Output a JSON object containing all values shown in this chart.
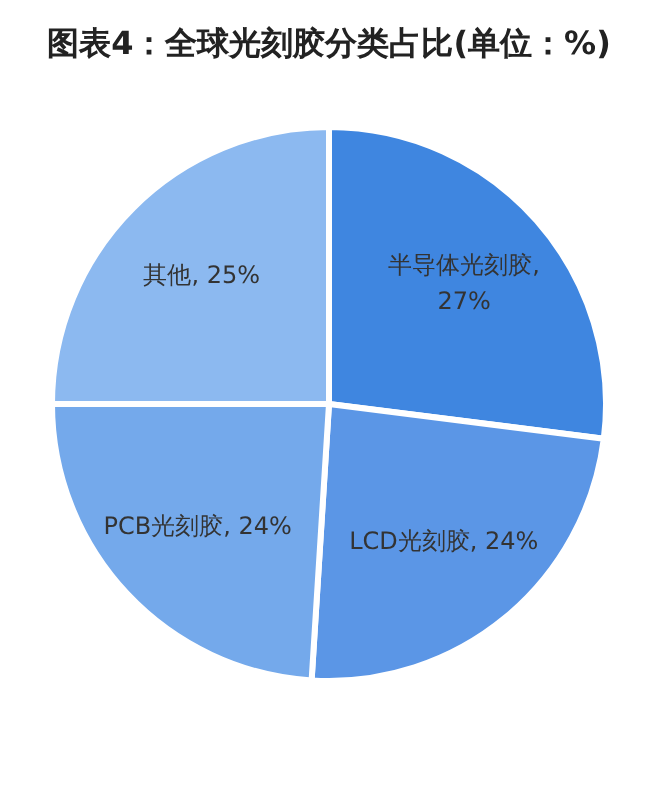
{
  "chart_data": {
    "type": "pie",
    "title": "图表4：全球光刻胶分类占比(单位：%)",
    "categories": [
      "半导体光刻胶",
      "LCD光刻胶",
      "PCB光刻胶",
      "其他"
    ],
    "values": [
      27,
      24,
      24,
      25
    ],
    "colors": [
      "#3f86e0",
      "#5b96e6",
      "#74a9eb",
      "#8cb9f0"
    ],
    "value_labels": [
      ", 27%",
      ", 24%",
      ", 24%",
      ", 25%"
    ],
    "legend": false
  }
}
